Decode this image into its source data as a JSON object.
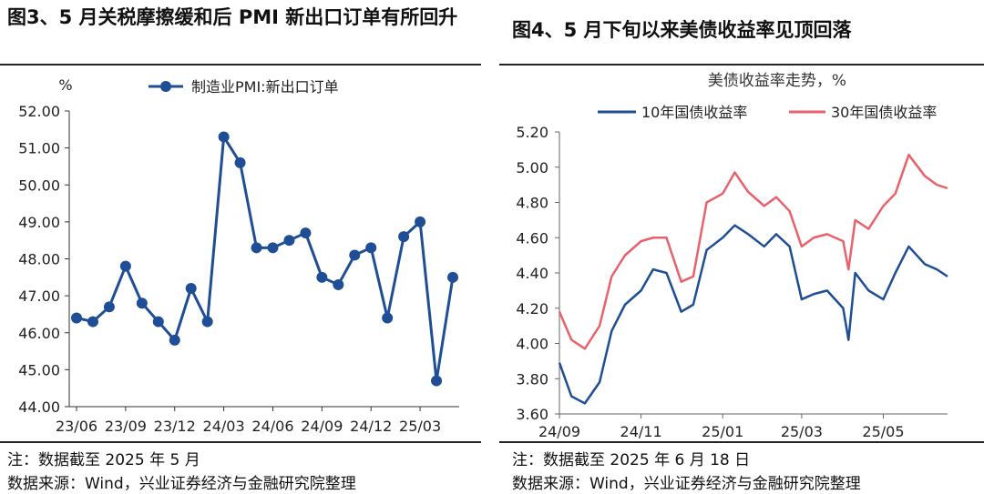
{
  "left": {
    "title": "图3、5 月关税摩擦缓和后 PMI 新出口订单有所回升",
    "note": "注：数据截至 2025 年 5 月",
    "source": "数据来源：Wind，兴业证券经济与金融研究院整理"
  },
  "right": {
    "title": "图4、5 月下旬以来美债收益率见顶回落",
    "note": "注：数据截至 2025 年 6 月 18 日",
    "source": "数据来源：Wind，兴业证券经济与金融研究院整理"
  },
  "chart_data": [
    {
      "type": "line",
      "title": "",
      "ylabel": "%",
      "ylim": [
        44,
        52
      ],
      "yticks": [
        "44.00",
        "45.00",
        "46.00",
        "47.00",
        "48.00",
        "49.00",
        "50.00",
        "51.00",
        "52.00"
      ],
      "xticks": [
        "23/06",
        "23/09",
        "23/12",
        "24/03",
        "24/06",
        "24/09",
        "24/12",
        "25/03"
      ],
      "x": [
        "2023-06",
        "2023-07",
        "2023-08",
        "2023-09",
        "2023-10",
        "2023-11",
        "2023-12",
        "2024-01",
        "2024-02",
        "2024-03",
        "2024-04",
        "2024-05",
        "2024-06",
        "2024-07",
        "2024-08",
        "2024-09",
        "2024-10",
        "2024-11",
        "2024-12",
        "2025-01",
        "2025-02",
        "2025-03",
        "2025-04",
        "2025-05"
      ],
      "series": [
        {
          "name": "制造业PMI:新出口订单",
          "color": "#1f4e96",
          "values": [
            46.4,
            46.3,
            46.7,
            47.8,
            46.8,
            46.3,
            45.8,
            47.2,
            46.3,
            51.3,
            50.6,
            48.3,
            48.3,
            48.5,
            48.7,
            47.5,
            47.3,
            48.1,
            48.3,
            46.4,
            48.6,
            49.0,
            44.7,
            47.5
          ]
        }
      ],
      "legend": "top",
      "grid": false
    },
    {
      "type": "line",
      "title": "美债收益率走势，%",
      "ylim": [
        3.6,
        5.2
      ],
      "yticks": [
        "3.60",
        "3.80",
        "4.00",
        "4.20",
        "4.40",
        "4.60",
        "4.80",
        "5.00",
        "5.20"
      ],
      "xticks": [
        "24/09",
        "24/11",
        "25/01",
        "25/03",
        "25/05"
      ],
      "x_start": "2024-09-01",
      "x_end": "2025-06-18",
      "x": [
        "2024-09-01",
        "2024-09-10",
        "2024-09-20",
        "2024-10-01",
        "2024-10-10",
        "2024-10-20",
        "2024-11-01",
        "2024-11-10",
        "2024-11-20",
        "2024-12-01",
        "2024-12-10",
        "2024-12-20",
        "2025-01-01",
        "2025-01-10",
        "2025-01-20",
        "2025-02-01",
        "2025-02-10",
        "2025-02-20",
        "2025-03-01",
        "2025-03-10",
        "2025-03-20",
        "2025-04-01",
        "2025-04-05",
        "2025-04-10",
        "2025-04-20",
        "2025-05-01",
        "2025-05-10",
        "2025-05-20",
        "2025-06-01",
        "2025-06-10",
        "2025-06-18"
      ],
      "series": [
        {
          "name": "10年国债收益率",
          "color": "#1f4e96",
          "values": [
            3.89,
            3.7,
            3.66,
            3.78,
            4.07,
            4.22,
            4.3,
            4.42,
            4.4,
            4.18,
            4.22,
            4.53,
            4.6,
            4.67,
            4.62,
            4.55,
            4.62,
            4.55,
            4.25,
            4.28,
            4.3,
            4.2,
            4.02,
            4.4,
            4.3,
            4.25,
            4.4,
            4.55,
            4.45,
            4.42,
            4.38
          ]
        },
        {
          "name": "30年国债收益率",
          "color": "#e8616b",
          "values": [
            4.18,
            4.02,
            3.97,
            4.1,
            4.38,
            4.5,
            4.58,
            4.6,
            4.6,
            4.35,
            4.38,
            4.8,
            4.85,
            4.97,
            4.86,
            4.78,
            4.83,
            4.75,
            4.55,
            4.6,
            4.62,
            4.58,
            4.42,
            4.7,
            4.65,
            4.78,
            4.85,
            5.07,
            4.95,
            4.9,
            4.88
          ]
        }
      ],
      "legend": "top",
      "grid": false
    }
  ]
}
